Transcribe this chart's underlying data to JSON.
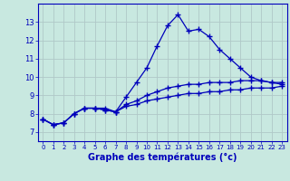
{
  "xlabel": "Graphe des températures (°c)",
  "background_color": "#c8e8e0",
  "grid_color": "#b0c8c8",
  "line_color": "#0000bb",
  "hours": [
    0,
    1,
    2,
    3,
    4,
    5,
    6,
    7,
    8,
    9,
    10,
    11,
    12,
    13,
    14,
    15,
    16,
    17,
    18,
    19,
    20,
    21,
    22,
    23
  ],
  "curve1": [
    7.7,
    7.4,
    7.5,
    8.0,
    8.3,
    8.3,
    8.3,
    8.1,
    8.9,
    9.7,
    10.5,
    11.7,
    12.8,
    13.4,
    12.5,
    12.6,
    12.2,
    11.5,
    11.0,
    10.5,
    10.0,
    9.8,
    9.7,
    9.7
  ],
  "curve2": [
    7.7,
    7.4,
    7.5,
    8.0,
    8.3,
    8.3,
    8.2,
    8.1,
    8.5,
    8.7,
    9.0,
    9.2,
    9.4,
    9.5,
    9.6,
    9.6,
    9.7,
    9.7,
    9.7,
    9.8,
    9.8,
    9.8,
    9.7,
    9.6
  ],
  "curve3": [
    7.7,
    7.4,
    7.5,
    8.0,
    8.3,
    8.3,
    8.2,
    8.1,
    8.4,
    8.5,
    8.7,
    8.8,
    8.9,
    9.0,
    9.1,
    9.1,
    9.2,
    9.2,
    9.3,
    9.3,
    9.4,
    9.4,
    9.4,
    9.5
  ],
  "ylim": [
    6.5,
    14.0
  ],
  "yticks": [
    7,
    8,
    9,
    10,
    11,
    12,
    13
  ],
  "xlim": [
    -0.5,
    23.5
  ],
  "xticks": [
    0,
    1,
    2,
    3,
    4,
    5,
    6,
    7,
    8,
    9,
    10,
    11,
    12,
    13,
    14,
    15,
    16,
    17,
    18,
    19,
    20,
    21,
    22,
    23
  ]
}
